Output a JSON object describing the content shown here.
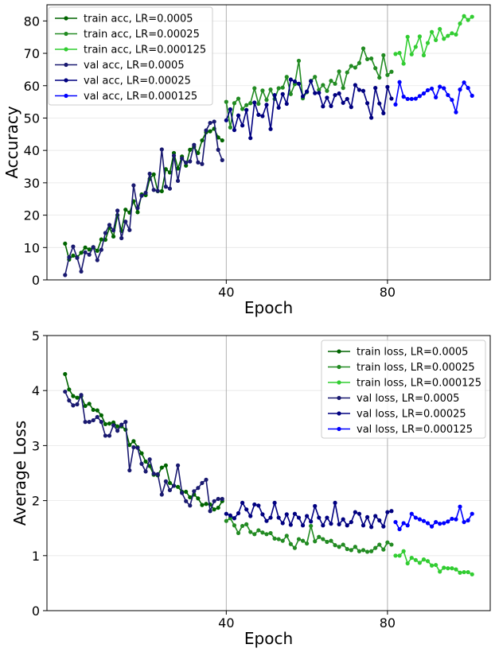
{
  "chart_data": [
    {
      "type": "line",
      "xlabel": "Epoch",
      "ylabel": "Accuracy",
      "xlim": [
        -4.5,
        105.5
      ],
      "ylim": [
        0,
        85
      ],
      "xticks": [
        {
          "value": 40,
          "label": "40"
        },
        {
          "value": 80,
          "label": "80"
        }
      ],
      "yticks": [
        {
          "value": 0,
          "label": "0"
        },
        {
          "value": 10,
          "label": "10"
        },
        {
          "value": 20,
          "label": "20"
        },
        {
          "value": 30,
          "label": "30"
        },
        {
          "value": 40,
          "label": "40"
        },
        {
          "value": 50,
          "label": "50"
        },
        {
          "value": 60,
          "label": "60"
        },
        {
          "value": 70,
          "label": "70"
        },
        {
          "value": 80,
          "label": "80"
        }
      ],
      "vlines": [
        40,
        80
      ],
      "grid": "y",
      "legend": "upper-left",
      "series": [
        {
          "name": "train acc, LR=0.0005",
          "color": "#006400",
          "x_start": 0,
          "values": [
            11.2,
            6.3,
            7.5,
            7,
            8.4,
            10,
            9.4,
            10.1,
            9,
            12.5,
            12.4,
            16.1,
            13.4,
            20,
            15.1,
            21.7,
            20.8,
            24.3,
            20.9,
            26.4,
            26.2,
            31.2,
            32.6,
            27.4,
            27.4,
            34.2,
            33.2,
            39.2,
            34.4,
            38.1,
            35.3,
            40.2,
            41.1,
            39.2,
            43.1,
            45.6,
            45.9,
            46.7,
            44,
            43.1
          ]
        },
        {
          "name": "train acc, LR=0.00025",
          "color": "#228B22",
          "x_start": 40,
          "values": [
            55,
            47.1,
            54.6,
            56,
            52.8,
            54,
            54.6,
            59.2,
            54.4,
            58.5,
            55.6,
            58.8,
            55.9,
            59.2,
            59.4,
            62.7,
            57.4,
            60.5,
            67.7,
            56.1,
            58,
            61.5,
            62.7,
            58.7,
            60.2,
            58.4,
            61.5,
            60.6,
            64.4,
            59.3,
            64.1,
            66.1,
            65.6,
            67,
            71.5,
            68.2,
            68.4,
            65.4,
            62.5,
            69.4,
            63.3,
            64.3
          ]
        },
        {
          "name": "train acc, LR=0.000125",
          "color": "#32CD32",
          "x_start": 82,
          "values": [
            69.8,
            70.1,
            66.8,
            75.1,
            69.7,
            72,
            75.2,
            69.4,
            73.2,
            76.6,
            74.1,
            77.5,
            74.5,
            75.4,
            76.2,
            75.8,
            79.2,
            81.5,
            80.3,
            81.3
          ]
        }
      ],
      "val_series": [
        {
          "name": "val acc, LR=0.0005",
          "color": "#191970",
          "x_start": 0,
          "values": [
            1.5,
            7,
            10.3,
            6.8,
            2.6,
            8.5,
            7.8,
            10.1,
            6.1,
            9.3,
            14.5,
            17,
            15.3,
            21.4,
            12.9,
            18,
            15.4,
            29.2,
            22.2,
            26,
            26.9,
            32.8,
            27.8,
            27.5,
            40.3,
            28.8,
            28.2,
            38.4,
            30.6,
            37.5,
            36.2,
            36.6,
            41.7,
            36.3,
            35.8,
            46.2,
            48.5,
            48.9,
            40.2,
            37
          ]
        },
        {
          "name": "val acc, LR=0.00025",
          "color": "#000080",
          "x_start": 40,
          "values": [
            49.3,
            52.7,
            46.3,
            50.8,
            47.7,
            52.5,
            43.8,
            54.8,
            51,
            50.6,
            54.1,
            46.6,
            57.1,
            53.2,
            57.4,
            54.4,
            61.9,
            61.3,
            60.6,
            56.7,
            58.2,
            61.4,
            57.7,
            57.8,
            53.6,
            56.3,
            53.7,
            57.1,
            57.6,
            54.7,
            55.9,
            53.4,
            60.2,
            58.7,
            58.4,
            54.6,
            50.1,
            59.3,
            54.5,
            51.5,
            59.6,
            56
          ]
        },
        {
          "name": "val acc, LR=0.000125",
          "color": "#0000FF",
          "x_start": 82,
          "values": [
            54.2,
            61.1,
            56.6,
            55.9,
            55.9,
            56,
            56.8,
            57.6,
            58.6,
            59.1,
            56.4,
            59.7,
            59.2,
            57.1,
            55.6,
            51.8,
            58.8,
            61,
            59.3,
            56.9
          ]
        }
      ]
    },
    {
      "type": "line",
      "xlabel": "Epoch",
      "ylabel": "Average Loss",
      "xlim": [
        -4.5,
        105.5
      ],
      "ylim": [
        0,
        5
      ],
      "xticks": [
        {
          "value": 40,
          "label": "40"
        },
        {
          "value": 80,
          "label": "80"
        }
      ],
      "yticks": [
        {
          "value": 0,
          "label": "0"
        },
        {
          "value": 1,
          "label": "1"
        },
        {
          "value": 2,
          "label": "2"
        },
        {
          "value": 3,
          "label": "3"
        },
        {
          "value": 4,
          "label": "4"
        },
        {
          "value": 5,
          "label": "5"
        }
      ],
      "vlines": [
        40,
        80
      ],
      "grid": "y",
      "legend": "upper-right",
      "series": [
        {
          "name": "train loss, LR=0.0005",
          "color": "#006400",
          "x_start": 0,
          "values": [
            4.3,
            4.02,
            3.9,
            3.87,
            3.9,
            3.72,
            3.76,
            3.65,
            3.64,
            3.55,
            3.39,
            3.4,
            3.42,
            3.35,
            3.35,
            3.29,
            3.01,
            3.08,
            2.97,
            2.86,
            2.71,
            2.63,
            2.47,
            2.46,
            2.6,
            2.64,
            2.32,
            2.27,
            2.25,
            2.16,
            2.16,
            2.06,
            2.11,
            2.04,
            1.92,
            1.94,
            1.93,
            1.84,
            1.87,
            1.99
          ]
        },
        {
          "name": "train loss, LR=0.00025",
          "color": "#228B22",
          "x_start": 40,
          "values": [
            1.63,
            1.68,
            1.55,
            1.41,
            1.54,
            1.57,
            1.43,
            1.39,
            1.46,
            1.42,
            1.39,
            1.41,
            1.31,
            1.3,
            1.27,
            1.36,
            1.21,
            1.14,
            1.3,
            1.27,
            1.22,
            1.54,
            1.26,
            1.34,
            1.3,
            1.25,
            1.27,
            1.19,
            1.16,
            1.2,
            1.12,
            1.1,
            1.16,
            1.08,
            1.1,
            1.07,
            1.08,
            1.14,
            1.2,
            1.11,
            1.24,
            1.2
          ]
        },
        {
          "name": "train loss, LR=0.000125",
          "color": "#32CD32",
          "x_start": 82,
          "values": [
            1.0,
            1.0,
            1.08,
            0.86,
            0.96,
            0.92,
            0.87,
            0.93,
            0.9,
            0.82,
            0.83,
            0.71,
            0.78,
            0.77,
            0.77,
            0.75,
            0.69,
            0.7,
            0.7,
            0.66
          ]
        }
      ],
      "val_series": [
        {
          "name": "val loss, LR=0.0005",
          "color": "#191970",
          "x_start": 0,
          "values": [
            3.98,
            3.82,
            3.73,
            3.75,
            3.92,
            3.43,
            3.43,
            3.46,
            3.52,
            3.43,
            3.18,
            3.18,
            3.37,
            3.27,
            3.38,
            3.43,
            2.55,
            2.97,
            2.96,
            2.67,
            2.53,
            2.75,
            2.49,
            2.48,
            2.11,
            2.35,
            2.19,
            2.27,
            2.64,
            2.14,
            1.99,
            1.91,
            2.17,
            2.23,
            2.32,
            2.38,
            1.81,
            1.99,
            2.03,
            2.03
          ]
        },
        {
          "name": "val loss, LR=0.00025",
          "color": "#000080",
          "x_start": 40,
          "values": [
            1.76,
            1.73,
            1.68,
            1.77,
            1.96,
            1.84,
            1.72,
            1.93,
            1.91,
            1.75,
            1.63,
            1.69,
            1.96,
            1.69,
            1.59,
            1.75,
            1.56,
            1.76,
            1.69,
            1.55,
            1.72,
            1.62,
            1.9,
            1.69,
            1.55,
            1.69,
            1.58,
            1.96,
            1.57,
            1.66,
            1.55,
            1.61,
            1.79,
            1.76,
            1.55,
            1.7,
            1.52,
            1.72,
            1.64,
            1.53,
            1.79,
            1.81
          ]
        },
        {
          "name": "val loss, LR=0.000125",
          "color": "#0000FF",
          "x_start": 82,
          "values": [
            1.61,
            1.48,
            1.59,
            1.55,
            1.76,
            1.69,
            1.66,
            1.63,
            1.59,
            1.53,
            1.61,
            1.58,
            1.59,
            1.62,
            1.67,
            1.66,
            1.89,
            1.61,
            1.64,
            1.76
          ]
        }
      ]
    }
  ]
}
